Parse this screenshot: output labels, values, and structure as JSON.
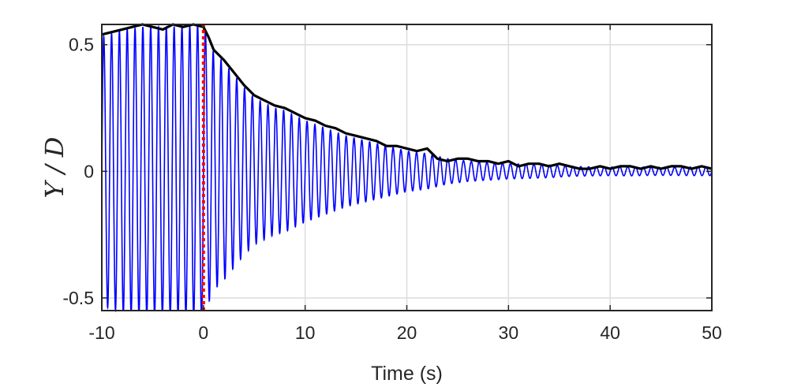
{
  "chart_data": {
    "type": "line",
    "xlabel": "Time (s)",
    "ylabel": "Y / D",
    "xlim": [
      -10,
      50
    ],
    "ylim": [
      -0.55,
      0.58
    ],
    "xticks": [
      -10,
      0,
      10,
      20,
      30,
      40,
      50
    ],
    "xtick_labels": [
      "-10",
      "0",
      "10",
      "20",
      "30",
      "40",
      "50"
    ],
    "yticks": [
      -0.5,
      0,
      0.5
    ],
    "ytick_labels": [
      "-0.5",
      "0",
      "0.5"
    ],
    "grid": true,
    "oscillation_frequency_hz": 1.3,
    "series": [
      {
        "role": "displacement",
        "color": "#0000ff",
        "envelope": [
          [
            -10,
            0.53
          ],
          [
            -8,
            0.56
          ],
          [
            -6,
            0.57
          ],
          [
            -4,
            0.57
          ],
          [
            -2,
            0.57
          ],
          [
            0,
            0.58
          ],
          [
            0.5,
            0.52
          ],
          [
            1,
            0.47
          ],
          [
            2,
            0.43
          ],
          [
            3,
            0.38
          ],
          [
            4,
            0.33
          ],
          [
            5,
            0.29
          ],
          [
            6,
            0.27
          ],
          [
            7,
            0.25
          ],
          [
            8,
            0.24
          ],
          [
            9,
            0.22
          ],
          [
            10,
            0.2
          ],
          [
            12,
            0.17
          ],
          [
            14,
            0.14
          ],
          [
            16,
            0.12
          ],
          [
            18,
            0.1
          ],
          [
            20,
            0.08
          ],
          [
            22,
            0.07
          ],
          [
            24,
            0.05
          ],
          [
            26,
            0.04
          ],
          [
            28,
            0.035
          ],
          [
            30,
            0.03
          ],
          [
            32,
            0.028
          ],
          [
            34,
            0.025
          ],
          [
            36,
            0.02
          ],
          [
            38,
            0.018
          ],
          [
            40,
            0.017
          ],
          [
            42,
            0.018
          ],
          [
            44,
            0.016
          ],
          [
            46,
            0.016
          ],
          [
            48,
            0.017
          ],
          [
            50,
            0.017
          ]
        ]
      },
      {
        "role": "upper envelope",
        "color": "#000000",
        "x": [
          -10,
          -8,
          -7,
          -6,
          -5,
          -4,
          -3,
          -2,
          -1,
          0,
          0.5,
          1,
          2,
          3,
          4,
          5,
          6,
          7,
          8,
          9,
          10,
          11,
          12,
          13,
          14,
          15,
          16,
          17,
          18,
          19,
          20,
          21,
          22,
          23,
          24,
          25,
          26,
          27,
          28,
          29,
          30,
          31,
          32,
          33,
          34,
          35,
          36,
          37,
          38,
          39,
          40,
          41,
          42,
          43,
          44,
          45,
          46,
          47,
          48,
          49,
          50
        ],
        "y": [
          0.54,
          0.56,
          0.57,
          0.58,
          0.57,
          0.56,
          0.58,
          0.57,
          0.58,
          0.57,
          0.53,
          0.48,
          0.44,
          0.39,
          0.34,
          0.3,
          0.28,
          0.26,
          0.25,
          0.23,
          0.21,
          0.2,
          0.18,
          0.17,
          0.15,
          0.14,
          0.13,
          0.12,
          0.1,
          0.1,
          0.09,
          0.08,
          0.09,
          0.05,
          0.04,
          0.05,
          0.05,
          0.04,
          0.04,
          0.03,
          0.04,
          0.02,
          0.03,
          0.03,
          0.02,
          0.03,
          0.02,
          0.01,
          0.01,
          0.02,
          0.01,
          0.02,
          0.02,
          0.01,
          0.02,
          0.01,
          0.02,
          0.02,
          0.01,
          0.02,
          0.01
        ]
      },
      {
        "role": "release marker",
        "color": "#ff0000",
        "style": "dotted",
        "x": [
          0,
          0
        ],
        "y": [
          -0.55,
          0.58
        ]
      }
    ]
  }
}
